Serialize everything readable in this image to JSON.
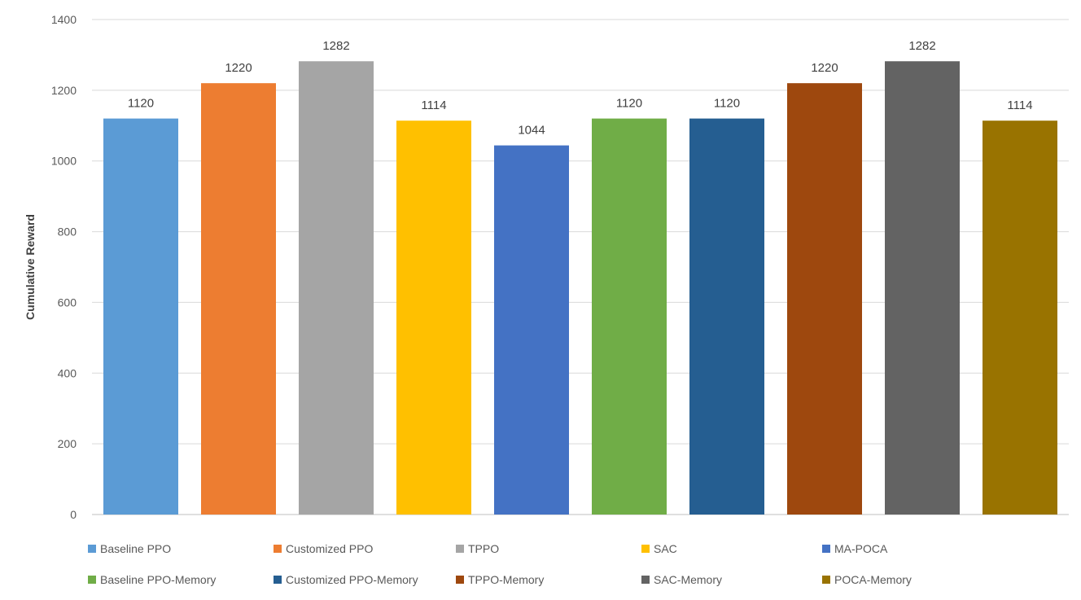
{
  "chart_data": {
    "type": "bar",
    "title": "",
    "xlabel": "",
    "ylabel": "Cumulative  Reward",
    "ylim": [
      0,
      1400
    ],
    "yticks": [
      0,
      200,
      400,
      600,
      800,
      1000,
      1200,
      1400
    ],
    "grid": true,
    "legend_position": "bottom",
    "categories": [
      "Baseline PPO",
      "Customized PPO",
      "TPPO",
      "SAC",
      "MA-POCA",
      "Baseline PPO-Memory",
      "Customized PPO-Memory",
      "TPPO-Memory",
      "SAC-Memory",
      "POCA-Memory"
    ],
    "values": [
      1120,
      1220,
      1282,
      1114,
      1044,
      1120,
      1120,
      1220,
      1282,
      1114
    ],
    "colors": [
      "#5b9bd5",
      "#ed7d31",
      "#a5a5a5",
      "#ffc000",
      "#4472c4",
      "#70ad47",
      "#255e91",
      "#9e480e",
      "#636363",
      "#997300"
    ]
  }
}
